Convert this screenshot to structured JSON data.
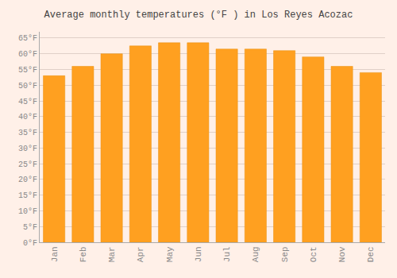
{
  "chart_data": {
    "type": "bar",
    "title": "Average monthly temperatures (°F ) in Los Reyes Acozac",
    "categories": [
      "Jan",
      "Feb",
      "Mar",
      "Apr",
      "May",
      "Jun",
      "Jul",
      "Aug",
      "Sep",
      "Oct",
      "Nov",
      "Dec"
    ],
    "values": [
      53,
      56,
      60,
      62.5,
      63.5,
      63.5,
      61.5,
      61.5,
      61,
      59,
      56,
      54
    ],
    "color": "#FFA020",
    "ylim": [
      0,
      67
    ],
    "yticks": [
      {
        "value": 0,
        "label": "0°F"
      },
      {
        "value": 5,
        "label": "5°F"
      },
      {
        "value": 10,
        "label": "10°F"
      },
      {
        "value": 15,
        "label": "15°F"
      },
      {
        "value": 20,
        "label": "20°F"
      },
      {
        "value": 25,
        "label": "25°F"
      },
      {
        "value": 30,
        "label": "30°F"
      },
      {
        "value": 35,
        "label": "35°F"
      },
      {
        "value": 40,
        "label": "40°F"
      },
      {
        "value": 45,
        "label": "45°F"
      },
      {
        "value": 50,
        "label": "50°F"
      },
      {
        "value": 55,
        "label": "55°F"
      },
      {
        "value": 60,
        "label": "60°F"
      },
      {
        "value": 65,
        "label": "65°F"
      }
    ],
    "grid": true
  }
}
